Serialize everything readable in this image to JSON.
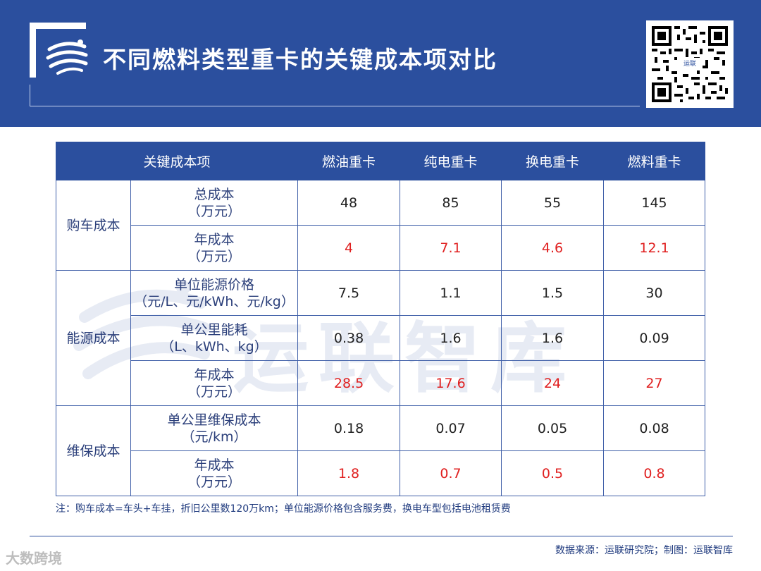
{
  "header": {
    "title": "不同燃料类型重卡的关键成本项对比",
    "qr_badge": "运联"
  },
  "watermark": {
    "text": "运联智库"
  },
  "table": {
    "headers": [
      "关键成本项",
      "燃油重卡",
      "纯电重卡",
      "换电重卡",
      "燃料重卡"
    ],
    "groups": [
      {
        "category": "购车成本"
      },
      {
        "category": "能源成本"
      },
      {
        "category": "维保成本"
      }
    ],
    "rows": [
      {
        "item_line1": "总成本",
        "item_line2": "（万元）",
        "values": [
          "48",
          "85",
          "55",
          "145"
        ],
        "highlight": false
      },
      {
        "item_line1": "年成本",
        "item_line2": "（万元）",
        "values": [
          "4",
          "7.1",
          "4.6",
          "12.1"
        ],
        "highlight": true
      },
      {
        "item_line1": "单位能源价格",
        "item_line2": "（元/L、元/kWh、元/kg）",
        "values": [
          "7.5",
          "1.1",
          "1.5",
          "30"
        ],
        "highlight": false
      },
      {
        "item_line1": "单公里能耗",
        "item_line2": "（L、kWh、kg）",
        "values": [
          "0.38",
          "1.6",
          "1.6",
          "0.09"
        ],
        "highlight": false
      },
      {
        "item_line1": "年成本",
        "item_line2": "（万元）",
        "values": [
          "28.5",
          "17.6",
          "24",
          "27"
        ],
        "highlight": true
      },
      {
        "item_line1": "单公里维保成本",
        "item_line2": "（元/km）",
        "values": [
          "0.18",
          "0.07",
          "0.05",
          "0.08"
        ],
        "highlight": false
      },
      {
        "item_line1": "年成本",
        "item_line2": "（万元）",
        "values": [
          "1.8",
          "0.7",
          "0.5",
          "0.8"
        ],
        "highlight": true
      }
    ]
  },
  "note": "注：购车成本=车头+车挂，折旧公里数120万km；单位能源价格包含服务费，换电车型包括电池租赁费",
  "source": "数据来源：运联研究院；制图：运联智库",
  "brand_mark": "大数跨境",
  "colors": {
    "primary": "#2b4f9e",
    "highlight": "#e02020",
    "table_border": "#3f5fa8"
  }
}
